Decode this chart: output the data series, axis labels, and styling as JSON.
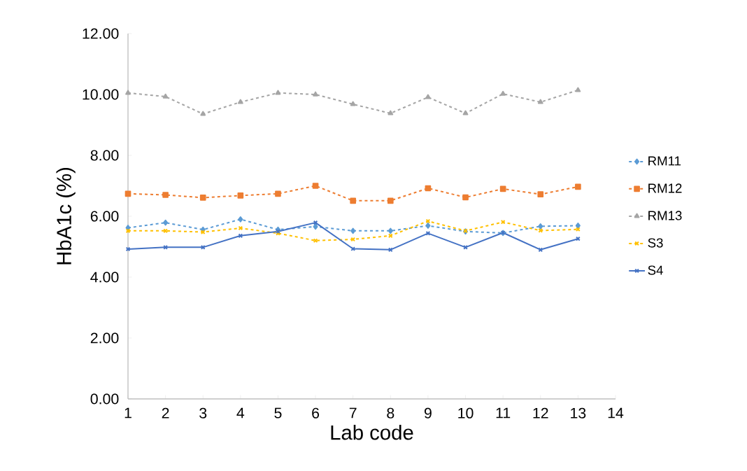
{
  "chart_data": {
    "type": "line",
    "xlabel": "Lab code",
    "ylabel": "HbA1c (%)",
    "x": [
      1,
      2,
      3,
      4,
      5,
      6,
      7,
      8,
      9,
      10,
      11,
      12,
      13
    ],
    "xlim": [
      1,
      14
    ],
    "xticks": [
      1,
      2,
      3,
      4,
      5,
      6,
      7,
      8,
      9,
      10,
      11,
      12,
      13,
      14
    ],
    "ylim": [
      0,
      12
    ],
    "yticks": [
      {
        "value": 0,
        "label": "0.00"
      },
      {
        "value": 2,
        "label": "2.00"
      },
      {
        "value": 4,
        "label": "4.00"
      },
      {
        "value": 6,
        "label": "6.00"
      },
      {
        "value": 8,
        "label": "8.00"
      },
      {
        "value": 10,
        "label": "10.00"
      },
      {
        "value": 12,
        "label": "12.00"
      }
    ],
    "grid": false,
    "legend": "right",
    "series": [
      {
        "name": "RM11",
        "color": "#5b9bd5",
        "marker": "diamond",
        "line_style": "dashed",
        "values": [
          5.62,
          5.79,
          5.56,
          5.9,
          5.56,
          5.66,
          5.52,
          5.52,
          5.69,
          5.5,
          5.45,
          5.67,
          5.69
        ]
      },
      {
        "name": "RM12",
        "color": "#ed7d31",
        "marker": "square",
        "line_style": "dashed",
        "values": [
          6.74,
          6.7,
          6.61,
          6.68,
          6.74,
          7.0,
          6.51,
          6.51,
          6.92,
          6.62,
          6.9,
          6.72,
          6.97
        ]
      },
      {
        "name": "RM13",
        "color": "#a5a5a5",
        "marker": "triangle",
        "line_style": "dashed",
        "values": [
          10.05,
          9.93,
          9.36,
          9.75,
          10.05,
          10.0,
          9.68,
          9.38,
          9.91,
          9.38,
          10.02,
          9.75,
          10.14
        ]
      },
      {
        "name": "S3",
        "color": "#ffc000",
        "marker": "cross",
        "line_style": "dashed",
        "values": [
          5.52,
          5.52,
          5.48,
          5.61,
          5.44,
          5.2,
          5.24,
          5.36,
          5.84,
          5.52,
          5.81,
          5.53,
          5.57
        ]
      },
      {
        "name": "S4",
        "color": "#4472c4",
        "marker": "cross",
        "line_style": "solid",
        "values": [
          4.92,
          4.98,
          4.98,
          5.36,
          5.5,
          5.79,
          4.93,
          4.9,
          5.44,
          4.98,
          5.46,
          4.9,
          5.26
        ]
      }
    ]
  }
}
